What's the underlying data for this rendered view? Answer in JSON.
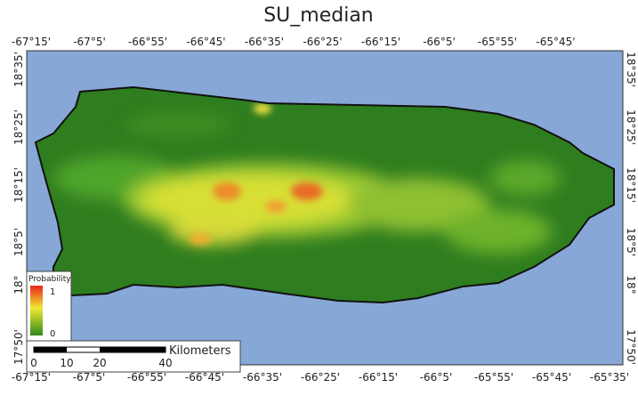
{
  "title": "SU_median",
  "top_labels": [
    "-67°15'",
    "-67°5'",
    "-66°55'",
    "-66°45'",
    "-66°35'",
    "-66°25'",
    "-66°15'",
    "-66°5'",
    "-65°55'",
    "-65°45'"
  ],
  "bottom_labels": [
    "-67°15'",
    "-67°5'",
    "-66°55'",
    "-66°45'",
    "-66°35'",
    "-66°25'",
    "-66°15'",
    "-66°5'",
    "-65°55'",
    "-65°45'",
    "-65°35'"
  ],
  "left_labels": [
    "18°35'",
    "18°25'",
    "18°15'",
    "18°5'",
    "18°",
    "17°50'"
  ],
  "right_labels": [
    "18°35'",
    "18°25'",
    "18°15'",
    "18°5'",
    "18°",
    "17°50'"
  ],
  "legend": {
    "title": "Probability",
    "high": "1",
    "low": "0"
  },
  "scale_bar": {
    "ticks": [
      "0",
      "10",
      "20",
      "40"
    ],
    "unit": "Kilometers"
  }
}
